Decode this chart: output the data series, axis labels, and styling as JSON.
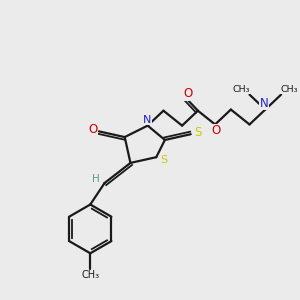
{
  "bg_color": "#ebebeb",
  "bond_color": "#1a1a1a",
  "N_color": "#2020cc",
  "O_color": "#cc0000",
  "S_color": "#cccc00",
  "H_color": "#5a9a9a",
  "figsize": [
    3.0,
    3.0
  ],
  "dpi": 100,
  "xlim": [
    0,
    10
  ],
  "ylim": [
    0,
    10
  ]
}
